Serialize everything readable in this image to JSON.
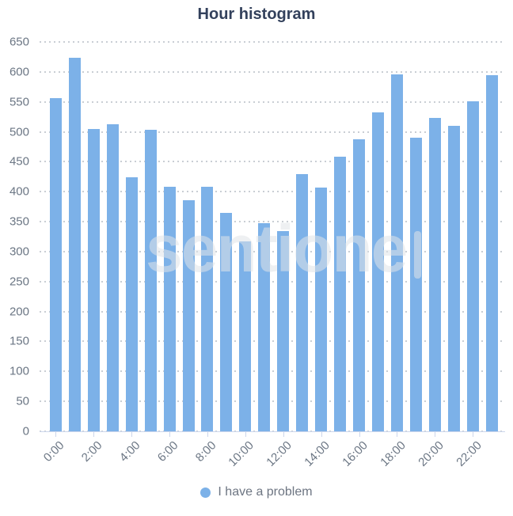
{
  "title": "Hour histogram",
  "legend": {
    "label": "I have a problem"
  },
  "watermark": "sentione",
  "colors": {
    "bar": "#7cb1e8",
    "title": "#33415c",
    "axis_label": "#6b7684",
    "grid_dot": "#c9ced4",
    "axis_line": "#ccd6eb",
    "legend_text": "#6d7582"
  },
  "chart_data": {
    "type": "bar",
    "title": "Hour histogram",
    "categories": [
      "0:00",
      "1:00",
      "2:00",
      "3:00",
      "4:00",
      "5:00",
      "6:00",
      "7:00",
      "8:00",
      "9:00",
      "10:00",
      "11:00",
      "12:00",
      "13:00",
      "14:00",
      "15:00",
      "16:00",
      "17:00",
      "18:00",
      "19:00",
      "20:00",
      "21:00",
      "22:00",
      "23:00"
    ],
    "series": [
      {
        "name": "I have a problem",
        "values": [
          556,
          623,
          505,
          512,
          424,
          503,
          408,
          386,
          408,
          364,
          317,
          348,
          334,
          430,
          407,
          458,
          487,
          532,
          596,
          490,
          523,
          510,
          551,
          595
        ]
      }
    ],
    "xlabel": "",
    "ylabel": "",
    "ylim": [
      0,
      650
    ],
    "y_tick_step": 50,
    "x_tick_labels": [
      "0:00",
      "2:00",
      "4:00",
      "6:00",
      "8:00",
      "10:00",
      "12:00",
      "14:00",
      "16:00",
      "18:00",
      "20:00",
      "22:00"
    ],
    "x_tick_interval": 2,
    "grid": "horizontal-dotted",
    "legend_position": "bottom-center"
  }
}
